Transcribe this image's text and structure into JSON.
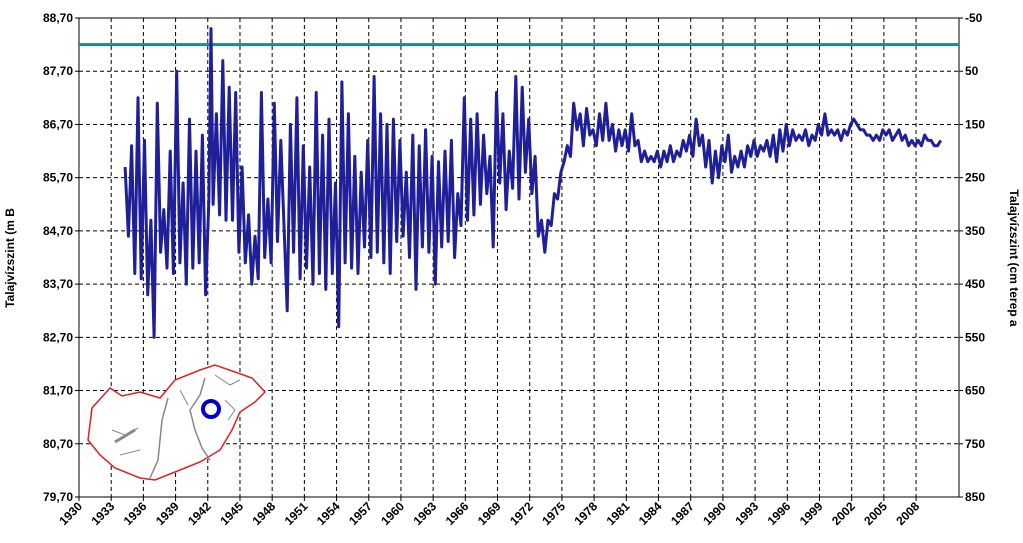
{
  "chart_data": {
    "type": "line",
    "title": "",
    "ylabel_left": "Talajvízszint (m B",
    "ylabel_right": "Talajvízszint (cm terep a",
    "xlim": [
      1930,
      2012
    ],
    "ylim_left": [
      79.7,
      88.7
    ],
    "ylim_right": [
      850,
      -50
    ],
    "y_ticks_left": [
      "79,70",
      "80,70",
      "81,70",
      "82,70",
      "83,70",
      "84,70",
      "85,70",
      "86,70",
      "87,70",
      "88,70"
    ],
    "y_ticks_right": [
      "850",
      "750",
      "650",
      "550",
      "450",
      "350",
      "250",
      "150",
      "50",
      "-50"
    ],
    "x_ticks": [
      "1930",
      "1933",
      "1936",
      "1939",
      "1942",
      "1945",
      "1948",
      "1951",
      "1954",
      "1957",
      "1960",
      "1963",
      "1966",
      "1969",
      "1972",
      "1975",
      "1978",
      "1981",
      "1984",
      "1987",
      "1990",
      "1993",
      "1996",
      "1999",
      "2002",
      "2005",
      "2008"
    ],
    "grid": true,
    "reference_line": {
      "y": 88.2,
      "color": "#1a8a8a"
    },
    "series": [
      {
        "color": "#1f1f9a",
        "points": [
          [
            1934.3,
            85.9
          ],
          [
            1934.6,
            84.6
          ],
          [
            1934.9,
            86.3
          ],
          [
            1935.2,
            83.9
          ],
          [
            1935.5,
            87.2
          ],
          [
            1935.8,
            83.8
          ],
          [
            1936.1,
            86.4
          ],
          [
            1936.4,
            83.5
          ],
          [
            1936.7,
            84.9
          ],
          [
            1937.0,
            82.7
          ],
          [
            1937.3,
            87.1
          ],
          [
            1937.6,
            84.3
          ],
          [
            1937.9,
            85.1
          ],
          [
            1938.2,
            84.0
          ],
          [
            1938.5,
            86.2
          ],
          [
            1938.8,
            83.9
          ],
          [
            1939.1,
            87.7
          ],
          [
            1939.4,
            84.1
          ],
          [
            1939.7,
            85.6
          ],
          [
            1940.0,
            83.7
          ],
          [
            1940.3,
            86.8
          ],
          [
            1940.6,
            84.0
          ],
          [
            1940.9,
            86.2
          ],
          [
            1941.2,
            84.1
          ],
          [
            1941.5,
            86.5
          ],
          [
            1941.8,
            83.5
          ],
          [
            1942.1,
            85.3
          ],
          [
            1942.3,
            88.5
          ],
          [
            1942.5,
            85.2
          ],
          [
            1942.8,
            86.9
          ],
          [
            1943.1,
            85.0
          ],
          [
            1943.4,
            87.9
          ],
          [
            1943.7,
            84.9
          ],
          [
            1944.0,
            87.4
          ],
          [
            1944.3,
            84.9
          ],
          [
            1944.6,
            87.3
          ],
          [
            1944.9,
            84.3
          ],
          [
            1945.2,
            85.9
          ],
          [
            1945.5,
            84.1
          ],
          [
            1945.8,
            85.0
          ],
          [
            1946.1,
            83.7
          ],
          [
            1946.4,
            84.6
          ],
          [
            1946.7,
            83.8
          ],
          [
            1947.0,
            87.3
          ],
          [
            1947.3,
            84.2
          ],
          [
            1947.6,
            85.3
          ],
          [
            1947.9,
            84.1
          ],
          [
            1948.2,
            87.1
          ],
          [
            1948.5,
            84.5
          ],
          [
            1948.8,
            86.4
          ],
          [
            1949.1,
            84.8
          ],
          [
            1949.4,
            83.2
          ],
          [
            1949.7,
            86.7
          ],
          [
            1950.0,
            84.3
          ],
          [
            1950.3,
            87.2
          ],
          [
            1950.6,
            83.8
          ],
          [
            1950.9,
            86.3
          ],
          [
            1951.2,
            84.0
          ],
          [
            1951.5,
            85.9
          ],
          [
            1951.8,
            83.7
          ],
          [
            1952.1,
            87.3
          ],
          [
            1952.4,
            83.9
          ],
          [
            1952.7,
            86.5
          ],
          [
            1953.0,
            83.6
          ],
          [
            1953.3,
            86.8
          ],
          [
            1953.6,
            83.9
          ],
          [
            1953.9,
            85.6
          ],
          [
            1954.2,
            82.9
          ],
          [
            1954.5,
            87.5
          ],
          [
            1954.8,
            84.1
          ],
          [
            1955.1,
            86.9
          ],
          [
            1955.4,
            84.0
          ],
          [
            1955.7,
            86.1
          ],
          [
            1956.0,
            83.9
          ],
          [
            1956.3,
            85.8
          ],
          [
            1956.6,
            84.4
          ],
          [
            1956.9,
            86.4
          ],
          [
            1957.2,
            84.2
          ],
          [
            1957.5,
            87.6
          ],
          [
            1957.8,
            84.3
          ],
          [
            1958.1,
            86.9
          ],
          [
            1958.4,
            84.1
          ],
          [
            1958.7,
            86.7
          ],
          [
            1959.0,
            83.9
          ],
          [
            1959.3,
            86.8
          ],
          [
            1959.6,
            84.5
          ],
          [
            1959.9,
            86.4
          ],
          [
            1960.2,
            84.6
          ],
          [
            1960.5,
            85.8
          ],
          [
            1960.8,
            84.2
          ],
          [
            1961.1,
            86.5
          ],
          [
            1961.4,
            83.6
          ],
          [
            1961.7,
            86.3
          ],
          [
            1962.0,
            84.4
          ],
          [
            1962.3,
            86.6
          ],
          [
            1962.6,
            84.3
          ],
          [
            1962.9,
            86.1
          ],
          [
            1963.2,
            83.7
          ],
          [
            1963.5,
            86.0
          ],
          [
            1963.8,
            84.4
          ],
          [
            1964.1,
            86.2
          ],
          [
            1964.4,
            84.5
          ],
          [
            1964.7,
            86.4
          ],
          [
            1965.0,
            84.2
          ],
          [
            1965.3,
            85.4
          ],
          [
            1965.6,
            84.8
          ],
          [
            1965.9,
            87.2
          ],
          [
            1966.2,
            84.9
          ],
          [
            1966.5,
            86.8
          ],
          [
            1966.8,
            85.0
          ],
          [
            1967.1,
            86.9
          ],
          [
            1967.4,
            85.2
          ],
          [
            1967.7,
            86.5
          ],
          [
            1968.0,
            85.4
          ],
          [
            1968.3,
            86.1
          ],
          [
            1968.6,
            84.4
          ],
          [
            1968.9,
            87.3
          ],
          [
            1969.2,
            85.6
          ],
          [
            1969.5,
            86.9
          ],
          [
            1969.8,
            85.1
          ],
          [
            1970.1,
            86.2
          ],
          [
            1970.4,
            85.5
          ],
          [
            1970.7,
            87.6
          ],
          [
            1971.0,
            85.3
          ],
          [
            1971.3,
            87.4
          ],
          [
            1971.6,
            85.8
          ],
          [
            1971.9,
            86.8
          ],
          [
            1972.2,
            85.4
          ],
          [
            1972.5,
            86.1
          ],
          [
            1972.8,
            84.6
          ],
          [
            1973.1,
            84.9
          ],
          [
            1973.4,
            84.3
          ],
          [
            1973.7,
            84.9
          ],
          [
            1974.0,
            84.8
          ],
          [
            1974.3,
            85.4
          ],
          [
            1974.6,
            85.3
          ],
          [
            1974.9,
            85.8
          ],
          [
            1975.2,
            86.0
          ],
          [
            1975.5,
            86.3
          ],
          [
            1975.8,
            86.1
          ],
          [
            1976.1,
            87.1
          ],
          [
            1976.4,
            86.6
          ],
          [
            1976.7,
            86.9
          ],
          [
            1977.0,
            86.3
          ],
          [
            1977.3,
            87.0
          ],
          [
            1977.6,
            86.5
          ],
          [
            1977.9,
            86.6
          ],
          [
            1978.2,
            86.3
          ],
          [
            1978.5,
            86.9
          ],
          [
            1978.8,
            86.4
          ],
          [
            1979.1,
            87.1
          ],
          [
            1979.4,
            86.4
          ],
          [
            1979.7,
            86.7
          ],
          [
            1980.0,
            86.2
          ],
          [
            1980.3,
            86.6
          ],
          [
            1980.6,
            86.3
          ],
          [
            1980.9,
            86.6
          ],
          [
            1981.2,
            86.2
          ],
          [
            1981.5,
            86.9
          ],
          [
            1981.8,
            86.3
          ],
          [
            1982.1,
            86.4
          ],
          [
            1982.4,
            86.0
          ],
          [
            1982.7,
            86.2
          ],
          [
            1983.0,
            86.0
          ],
          [
            1983.3,
            86.1
          ],
          [
            1983.6,
            86.0
          ],
          [
            1983.9,
            86.2
          ],
          [
            1984.2,
            85.9
          ],
          [
            1984.5,
            86.2
          ],
          [
            1984.8,
            86.0
          ],
          [
            1985.1,
            86.3
          ],
          [
            1985.4,
            86.0
          ],
          [
            1985.7,
            86.2
          ],
          [
            1986.0,
            86.1
          ],
          [
            1986.3,
            86.4
          ],
          [
            1986.6,
            86.2
          ],
          [
            1986.9,
            86.5
          ],
          [
            1987.2,
            86.1
          ],
          [
            1987.5,
            86.8
          ],
          [
            1987.8,
            86.3
          ],
          [
            1988.1,
            86.5
          ],
          [
            1988.4,
            85.9
          ],
          [
            1988.7,
            86.4
          ],
          [
            1989.0,
            85.6
          ],
          [
            1989.3,
            86.2
          ],
          [
            1989.6,
            85.7
          ],
          [
            1989.9,
            86.3
          ],
          [
            1990.2,
            86.0
          ],
          [
            1990.5,
            86.5
          ],
          [
            1990.8,
            85.8
          ],
          [
            1991.1,
            86.1
          ],
          [
            1991.4,
            85.9
          ],
          [
            1991.7,
            86.2
          ],
          [
            1992.0,
            85.9
          ],
          [
            1992.3,
            86.3
          ],
          [
            1992.6,
            86.1
          ],
          [
            1992.9,
            86.4
          ],
          [
            1993.2,
            86.1
          ],
          [
            1993.5,
            86.3
          ],
          [
            1993.8,
            86.2
          ],
          [
            1994.1,
            86.4
          ],
          [
            1994.4,
            86.1
          ],
          [
            1994.7,
            86.5
          ],
          [
            1995.0,
            86.0
          ],
          [
            1995.3,
            86.6
          ],
          [
            1995.6,
            86.2
          ],
          [
            1995.9,
            86.7
          ],
          [
            1996.2,
            86.3
          ],
          [
            1996.5,
            86.6
          ],
          [
            1996.8,
            86.4
          ],
          [
            1997.1,
            86.5
          ],
          [
            1997.4,
            86.4
          ],
          [
            1997.7,
            86.6
          ],
          [
            1998.0,
            86.3
          ],
          [
            1998.3,
            86.5
          ],
          [
            1998.6,
            86.4
          ],
          [
            1998.9,
            86.7
          ],
          [
            1999.2,
            86.5
          ],
          [
            1999.5,
            86.9
          ],
          [
            1999.8,
            86.5
          ],
          [
            2000.1,
            86.6
          ],
          [
            2000.4,
            86.5
          ],
          [
            2000.7,
            86.6
          ],
          [
            2001.0,
            86.4
          ],
          [
            2001.3,
            86.6
          ],
          [
            2001.6,
            86.5
          ],
          [
            2001.9,
            86.7
          ],
          [
            2002.2,
            86.8
          ],
          [
            2002.5,
            86.7
          ],
          [
            2002.8,
            86.6
          ],
          [
            2003.1,
            86.6
          ],
          [
            2003.4,
            86.5
          ],
          [
            2003.7,
            86.5
          ],
          [
            2004.0,
            86.4
          ],
          [
            2004.3,
            86.5
          ],
          [
            2004.6,
            86.4
          ],
          [
            2004.9,
            86.6
          ],
          [
            2005.2,
            86.5
          ],
          [
            2005.5,
            86.6
          ],
          [
            2005.8,
            86.4
          ],
          [
            2006.1,
            86.5
          ],
          [
            2006.4,
            86.6
          ],
          [
            2006.7,
            86.4
          ],
          [
            2007.0,
            86.5
          ],
          [
            2007.3,
            86.3
          ],
          [
            2007.6,
            86.4
          ],
          [
            2007.9,
            86.3
          ],
          [
            2008.2,
            86.4
          ],
          [
            2008.5,
            86.3
          ],
          [
            2008.8,
            86.5
          ],
          [
            2009.1,
            86.4
          ],
          [
            2009.4,
            86.4
          ],
          [
            2009.7,
            86.3
          ],
          [
            2010.0,
            86.3
          ],
          [
            2010.3,
            86.4
          ]
        ]
      }
    ]
  },
  "inset_map": {
    "border_color": "#e02020",
    "river_color": "#888888",
    "marker_color": "#0000cc"
  }
}
